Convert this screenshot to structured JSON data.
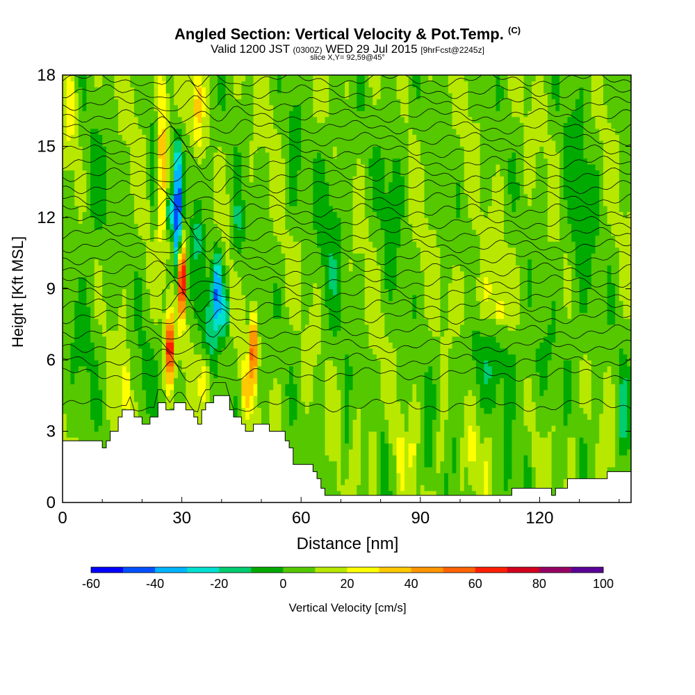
{
  "title": "Angled Section: Vertical Velocity & Pot.Temp.",
  "title_tag": "(C)",
  "valid_prefix": "Valid 1200 JST",
  "valid_utc": "(0300Z)",
  "valid_date": "WED 29 Jul 2015",
  "forecast_tag": "[9hrFcst@2245z]",
  "slice_text": "slice X,Y= 92,59@45°",
  "colors": {
    "terrain_fill": "#ffffff",
    "contour": "#000000",
    "background_green": "#66cc00",
    "palette": [
      "#0000ff",
      "#0050ff",
      "#00b4ff",
      "#00e0d0",
      "#00cc70",
      "#00aa00",
      "#55c800",
      "#b8e800",
      "#ffff00",
      "#ffc800",
      "#ff9600",
      "#ff6400",
      "#ff1e00",
      "#d2001e",
      "#960064",
      "#5a0096"
    ]
  },
  "chart_data": {
    "type": "heatmap",
    "xlabel": "Distance [nm]",
    "ylabel": "Height [Kft MSL]",
    "xlim": [
      0,
      143
    ],
    "ylim": [
      0,
      18
    ],
    "xticks": [
      0,
      30,
      60,
      90,
      120
    ],
    "yticks": [
      0,
      3,
      6,
      9,
      12,
      15,
      18
    ],
    "grid": false,
    "colorbar": {
      "label": "Vertical Velocity [cm/s]",
      "min": -60,
      "max": 100,
      "step": 10,
      "tick_labels": [
        "-60",
        "-40",
        "-20",
        "0",
        "20",
        "40",
        "60",
        "80",
        "100"
      ]
    },
    "terrain_kft": [
      [
        0,
        2.6
      ],
      [
        10,
        2.6
      ],
      [
        10,
        2.3
      ],
      [
        11,
        2.3
      ],
      [
        11,
        2.6
      ],
      [
        12,
        2.6
      ],
      [
        12,
        3.0
      ],
      [
        14,
        3.0
      ],
      [
        14,
        3.6
      ],
      [
        15,
        3.6
      ],
      [
        15,
        3.9
      ],
      [
        18,
        3.9
      ],
      [
        18,
        3.6
      ],
      [
        20,
        3.6
      ],
      [
        20,
        3.3
      ],
      [
        22,
        3.3
      ],
      [
        22,
        3.6
      ],
      [
        24,
        3.6
      ],
      [
        24,
        4.2
      ],
      [
        26,
        4.2
      ],
      [
        26,
        3.9
      ],
      [
        28,
        3.9
      ],
      [
        28,
        4.2
      ],
      [
        31,
        4.2
      ],
      [
        31,
        3.9
      ],
      [
        33,
        3.9
      ],
      [
        33,
        3.6
      ],
      [
        34,
        3.6
      ],
      [
        34,
        3.3
      ],
      [
        35,
        3.3
      ],
      [
        35,
        3.9
      ],
      [
        36,
        3.9
      ],
      [
        36,
        4.2
      ],
      [
        38,
        4.2
      ],
      [
        38,
        4.5
      ],
      [
        42,
        4.5
      ],
      [
        42,
        3.9
      ],
      [
        43,
        3.9
      ],
      [
        43,
        3.6
      ],
      [
        45,
        3.6
      ],
      [
        45,
        3.3
      ],
      [
        46,
        3.3
      ],
      [
        46,
        3.0
      ],
      [
        48,
        3.0
      ],
      [
        48,
        3.3
      ],
      [
        52,
        3.3
      ],
      [
        52,
        3.0
      ],
      [
        56,
        3.0
      ],
      [
        56,
        2.6
      ],
      [
        57,
        2.6
      ],
      [
        57,
        2.3
      ],
      [
        58,
        2.3
      ],
      [
        58,
        1.6
      ],
      [
        63,
        1.6
      ],
      [
        63,
        1.3
      ],
      [
        64,
        1.3
      ],
      [
        64,
        1.0
      ],
      [
        65,
        1.0
      ],
      [
        65,
        0.6
      ],
      [
        66,
        0.6
      ],
      [
        66,
        0.3
      ],
      [
        113,
        0.3
      ],
      [
        113,
        0.6
      ],
      [
        123,
        0.6
      ],
      [
        123,
        0.3
      ],
      [
        124,
        0.3
      ],
      [
        124,
        0.6
      ],
      [
        127,
        0.6
      ],
      [
        127,
        1.0
      ],
      [
        137,
        1.0
      ],
      [
        137,
        1.3
      ],
      [
        143,
        1.3
      ]
    ],
    "w_base_cms": 8,
    "w_features": [
      {
        "x": 29,
        "z": 11.5,
        "sx": 1.0,
        "sz": 2.0,
        "w": -55
      },
      {
        "x": 27,
        "z": 12.3,
        "sx": 0.9,
        "sz": 0.8,
        "w": -40
      },
      {
        "x": 30,
        "z": 9.5,
        "sx": 0.8,
        "sz": 1.6,
        "w": 85
      },
      {
        "x": 27,
        "z": 6.5,
        "sx": 0.9,
        "sz": 1.4,
        "w": 70
      },
      {
        "x": 29,
        "z": 14.0,
        "sx": 0.9,
        "sz": 1.5,
        "w": -30
      },
      {
        "x": 25,
        "z": 15.5,
        "sx": 1.5,
        "sz": 4.0,
        "w": 30
      },
      {
        "x": 23,
        "z": 14.0,
        "sx": 0.8,
        "sz": 3.0,
        "w": -18
      },
      {
        "x": 39,
        "z": 9.0,
        "sx": 1.2,
        "sz": 1.6,
        "w": -45
      },
      {
        "x": 41,
        "z": 8.0,
        "sx": 0.8,
        "sz": 1.0,
        "w": -38
      },
      {
        "x": 37,
        "z": 7.5,
        "sx": 2.0,
        "sz": 2.5,
        "w": -22
      },
      {
        "x": 34,
        "z": 11.5,
        "sx": 1.5,
        "sz": 1.5,
        "w": -20
      },
      {
        "x": 44,
        "z": 11.5,
        "sx": 1.5,
        "sz": 1.8,
        "w": -18
      },
      {
        "x": 48,
        "z": 6.5,
        "sx": 0.7,
        "sz": 1.5,
        "w": 60
      },
      {
        "x": 46,
        "z": 4.8,
        "sx": 1.2,
        "sz": 1.2,
        "w": 25
      },
      {
        "x": 36,
        "z": 5.2,
        "sx": 1.5,
        "sz": 1.2,
        "w": 30
      },
      {
        "x": 16,
        "z": 4.8,
        "sx": 1.0,
        "sz": 1.2,
        "w": 30
      },
      {
        "x": 34,
        "z": 17.0,
        "sx": 1.5,
        "sz": 2.0,
        "w": 25
      },
      {
        "x": 33,
        "z": 14.0,
        "sx": 2.0,
        "sz": 1.2,
        "w": -12
      },
      {
        "x": 71,
        "z": 2.0,
        "sx": 0.6,
        "sz": 1.5,
        "w": -22
      },
      {
        "x": 74,
        "z": 2.0,
        "sx": 0.5,
        "sz": 1.5,
        "w": 30
      },
      {
        "x": 78,
        "z": 2.0,
        "sx": 0.5,
        "sz": 1.5,
        "w": 40
      },
      {
        "x": 81,
        "z": 2.0,
        "sx": 0.6,
        "sz": 1.5,
        "w": -22
      },
      {
        "x": 85,
        "z": 2.0,
        "sx": 0.5,
        "sz": 1.5,
        "w": 28
      },
      {
        "x": 88,
        "z": 2.0,
        "sx": 0.5,
        "sz": 1.5,
        "w": 25
      },
      {
        "x": 92,
        "z": 2.0,
        "sx": 0.6,
        "sz": 1.5,
        "w": -22
      },
      {
        "x": 95,
        "z": 2.0,
        "sx": 0.5,
        "sz": 1.5,
        "w": 25
      },
      {
        "x": 99,
        "z": 2.0,
        "sx": 0.6,
        "sz": 1.5,
        "w": -18
      },
      {
        "x": 103,
        "z": 2.0,
        "sx": 0.5,
        "sz": 1.5,
        "w": 25
      },
      {
        "x": 107,
        "z": 2.0,
        "sx": 0.5,
        "sz": 1.5,
        "w": 20
      },
      {
        "x": 112,
        "z": 2.0,
        "sx": 0.6,
        "sz": 1.5,
        "w": -18
      },
      {
        "x": 117,
        "z": 2.0,
        "sx": 0.6,
        "sz": 1.5,
        "w": -15
      },
      {
        "x": 128,
        "z": 2.2,
        "sx": 0.5,
        "sz": 1.5,
        "w": 28
      },
      {
        "x": 131,
        "z": 2.0,
        "sx": 0.6,
        "sz": 1.5,
        "w": -15
      },
      {
        "x": 141,
        "z": 3.5,
        "sx": 1.5,
        "sz": 2.0,
        "w": -20
      },
      {
        "x": 110,
        "z": 6.0,
        "sx": 12.0,
        "sz": 2.0,
        "w": -12
      },
      {
        "x": 106,
        "z": 8.5,
        "sx": 8.0,
        "sz": 1.5,
        "w": 10
      },
      {
        "x": 110,
        "z": 8.0,
        "sx": 0.8,
        "sz": 0.6,
        "w": 20
      },
      {
        "x": 68,
        "z": 11.5,
        "sx": 4.0,
        "sz": 4.0,
        "w": -12
      },
      {
        "x": 130,
        "z": 12.0,
        "sx": 4.0,
        "sz": 6.0,
        "w": -12
      },
      {
        "x": 83,
        "z": 14.0,
        "sx": 3.0,
        "sz": 4.0,
        "w": -12
      },
      {
        "x": 8,
        "z": 12.5,
        "sx": 4.0,
        "sz": 3.0,
        "w": -10
      },
      {
        "x": 6,
        "z": 7.0,
        "sx": 4.0,
        "sz": 2.5,
        "w": -8
      },
      {
        "x": 2,
        "z": 16.5,
        "sx": 1.5,
        "sz": 2.0,
        "w": 15
      },
      {
        "x": 20,
        "z": 5.0,
        "sx": 3.0,
        "sz": 2.0,
        "w": -8
      },
      {
        "x": 58,
        "z": 14.5,
        "sx": 2.0,
        "sz": 3.0,
        "w": -10
      }
    ],
    "theta_contour_heights_kft": [
      4.1,
      5.4,
      6.0,
      6.6,
      7.2,
      7.8,
      8.3,
      8.8,
      9.3,
      9.8,
      10.3,
      10.8,
      11.3,
      11.8,
      12.3,
      12.8,
      13.3,
      13.8,
      14.3,
      14.8,
      15.3,
      15.8,
      16.3,
      16.8,
      17.3,
      17.8
    ]
  }
}
